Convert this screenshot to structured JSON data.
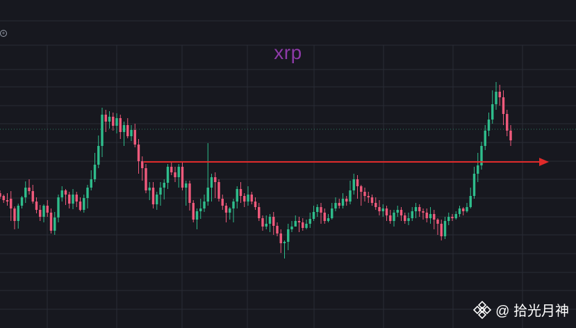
{
  "title": "xrp",
  "watermark": {
    "text": "@ 拾光月神",
    "logo_icon": "binance-logo-icon"
  },
  "topbar": {
    "icon": "plus-circle-icon"
  },
  "colors": {
    "background": "#17181f",
    "grid": "#2a2c35",
    "up": "#2fbd8c",
    "down": "#f05a7c",
    "title": "#8e3aa8",
    "arrow": "#e02a2a",
    "dotted_level": "#2f7d61"
  },
  "chart_data": {
    "type": "candlestick",
    "title": "xrp",
    "grid": true,
    "y_scale": "linear",
    "annotations": {
      "horizontal_arrow": {
        "level": 233,
        "from_x": 207,
        "to_x": 790,
        "direction": "right"
      },
      "dotted_level": 186
    },
    "candles": [
      [
        278,
        283,
        274,
        286
      ],
      [
        282,
        288,
        280,
        292
      ],
      [
        288,
        290,
        278,
        296
      ],
      [
        286,
        300,
        275,
        318
      ],
      [
        300,
        318,
        297,
        330
      ],
      [
        318,
        296,
        293,
        329
      ],
      [
        296,
        284,
        282,
        300
      ],
      [
        284,
        270,
        261,
        292
      ],
      [
        270,
        275,
        258,
        280
      ],
      [
        275,
        290,
        266,
        293
      ],
      [
        290,
        302,
        284,
        307
      ],
      [
        302,
        312,
        295,
        318
      ],
      [
        312,
        296,
        294,
        320
      ],
      [
        296,
        306,
        288,
        312
      ],
      [
        306,
        332,
        300,
        336
      ],
      [
        332,
        313,
        305,
        338
      ],
      [
        313,
        284,
        280,
        320
      ],
      [
        284,
        274,
        268,
        290
      ],
      [
        274,
        280,
        272,
        295
      ],
      [
        280,
        293,
        276,
        300
      ],
      [
        293,
        280,
        272,
        301
      ],
      [
        280,
        290,
        276,
        298
      ],
      [
        290,
        302,
        284,
        304
      ],
      [
        302,
        285,
        280,
        306
      ],
      [
        285,
        270,
        266,
        300
      ],
      [
        270,
        258,
        245,
        274
      ],
      [
        258,
        237,
        220,
        262
      ],
      [
        237,
        210,
        195,
        242
      ],
      [
        210,
        165,
        155,
        226
      ],
      [
        165,
        175,
        158,
        190
      ],
      [
        175,
        168,
        160,
        185
      ],
      [
        168,
        181,
        162,
        188
      ],
      [
        181,
        170,
        163,
        192
      ],
      [
        170,
        190,
        165,
        200
      ],
      [
        190,
        180,
        175,
        210
      ],
      [
        180,
        196,
        170,
        199
      ],
      [
        196,
        187,
        180,
        203
      ],
      [
        187,
        208,
        178,
        212
      ],
      [
        208,
        232,
        200,
        250
      ],
      [
        232,
        242,
        225,
        260
      ],
      [
        242,
        274,
        236,
        278
      ],
      [
        274,
        270,
        262,
        288
      ],
      [
        270,
        294,
        262,
        300
      ],
      [
        294,
        280,
        276,
        302
      ],
      [
        280,
        270,
        262,
        296
      ],
      [
        270,
        263,
        258,
        287
      ],
      [
        263,
        240,
        236,
        272
      ],
      [
        240,
        248,
        232,
        252
      ],
      [
        248,
        255,
        240,
        262
      ],
      [
        255,
        240,
        236,
        270
      ],
      [
        240,
        270,
        234,
        274
      ],
      [
        270,
        264,
        260,
        296
      ],
      [
        264,
        292,
        260,
        303
      ],
      [
        292,
        316,
        288,
        320
      ],
      [
        316,
        304,
        300,
        330
      ],
      [
        304,
        300,
        286,
        315
      ],
      [
        300,
        290,
        280,
        305
      ],
      [
        290,
        270,
        206,
        296
      ],
      [
        270,
        255,
        250,
        290
      ],
      [
        255,
        262,
        248,
        285
      ],
      [
        262,
        286,
        258,
        290
      ],
      [
        286,
        296,
        280,
        302
      ],
      [
        296,
        306,
        292,
        320
      ],
      [
        306,
        300,
        298,
        316
      ],
      [
        300,
        290,
        286,
        320
      ],
      [
        290,
        272,
        268,
        300
      ],
      [
        272,
        282,
        262,
        292
      ],
      [
        282,
        290,
        278,
        298
      ],
      [
        290,
        280,
        268,
        296
      ],
      [
        280,
        290,
        276,
        294
      ],
      [
        290,
        298,
        284,
        302
      ],
      [
        298,
        314,
        292,
        318
      ],
      [
        314,
        326,
        310,
        332
      ],
      [
        326,
        322,
        310,
        330
      ],
      [
        322,
        312,
        308,
        334
      ],
      [
        312,
        325,
        305,
        338
      ],
      [
        325,
        336,
        320,
        340
      ],
      [
        336,
        350,
        330,
        364
      ],
      [
        350,
        348,
        346,
        372
      ],
      [
        348,
        330,
        322,
        360
      ],
      [
        330,
        326,
        318,
        334
      ],
      [
        326,
        318,
        310,
        324
      ],
      [
        318,
        320,
        312,
        334
      ],
      [
        320,
        328,
        314,
        332
      ],
      [
        328,
        322,
        316,
        330
      ],
      [
        322,
        315,
        306,
        328
      ],
      [
        315,
        305,
        296,
        318
      ],
      [
        305,
        298,
        294,
        312
      ],
      [
        298,
        306,
        292,
        322
      ],
      [
        306,
        318,
        300,
        322
      ],
      [
        318,
        314,
        308,
        320
      ],
      [
        314,
        300,
        292,
        316
      ],
      [
        300,
        292,
        284,
        304
      ],
      [
        292,
        296,
        286,
        300
      ],
      [
        296,
        286,
        278,
        300
      ],
      [
        286,
        290,
        282,
        296
      ],
      [
        290,
        274,
        260,
        294
      ],
      [
        274,
        258,
        250,
        280
      ],
      [
        258,
        268,
        252,
        286
      ],
      [
        268,
        276,
        266,
        296
      ],
      [
        276,
        282,
        270,
        290
      ],
      [
        282,
        284,
        276,
        292
      ],
      [
        284,
        292,
        280,
        296
      ],
      [
        292,
        298,
        284,
        302
      ],
      [
        298,
        304,
        288,
        310
      ],
      [
        304,
        300,
        294,
        312
      ],
      [
        300,
        310,
        296,
        318
      ],
      [
        310,
        318,
        302,
        322
      ],
      [
        318,
        306,
        302,
        326
      ],
      [
        306,
        302,
        296,
        312
      ],
      [
        302,
        310,
        298,
        318
      ],
      [
        310,
        318,
        306,
        322
      ],
      [
        318,
        314,
        306,
        324
      ],
      [
        314,
        304,
        298,
        318
      ],
      [
        304,
        298,
        292,
        314
      ],
      [
        298,
        304,
        294,
        312
      ],
      [
        304,
        306,
        300,
        316
      ],
      [
        306,
        314,
        300,
        320
      ],
      [
        314,
        308,
        298,
        322
      ],
      [
        308,
        316,
        302,
        330
      ],
      [
        316,
        322,
        314,
        338
      ],
      [
        322,
        340,
        316,
        346
      ],
      [
        340,
        318,
        312,
        344
      ],
      [
        318,
        312,
        306,
        324
      ],
      [
        312,
        314,
        308,
        318
      ],
      [
        314,
        308,
        304,
        316
      ],
      [
        308,
        300,
        296,
        312
      ],
      [
        300,
        304,
        298,
        310
      ],
      [
        304,
        298,
        292,
        306
      ],
      [
        298,
        282,
        270,
        300
      ],
      [
        282,
        250,
        240,
        286
      ],
      [
        250,
        238,
        220,
        262
      ],
      [
        238,
        210,
        204,
        244
      ],
      [
        210,
        188,
        180,
        216
      ],
      [
        188,
        172,
        162,
        196
      ],
      [
        172,
        150,
        130,
        178
      ],
      [
        150,
        132,
        118,
        158
      ],
      [
        132,
        140,
        122,
        152
      ],
      [
        140,
        164,
        130,
        180
      ],
      [
        164,
        188,
        158,
        196
      ],
      [
        188,
        202,
        180,
        210
      ]
    ]
  }
}
